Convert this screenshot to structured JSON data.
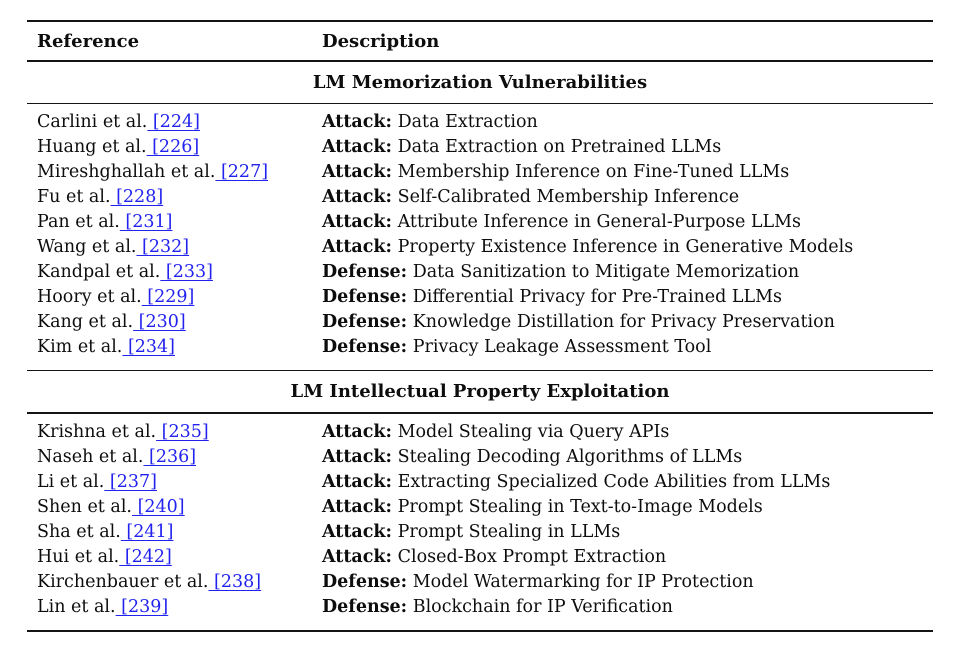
{
  "table": {
    "columns": {
      "reference": "Reference",
      "description": "Description"
    },
    "link_color": "#2222ee",
    "sections": [
      {
        "title": "LM Memorization Vulnerabilities",
        "rows": [
          {
            "author": "Carlini et al.",
            "cite": "[224]",
            "kind": "Attack:",
            "desc": "Data Extraction"
          },
          {
            "author": "Huang et al.",
            "cite": "[226]",
            "kind": "Attack:",
            "desc": "Data Extraction on Pretrained LLMs"
          },
          {
            "author": "Mireshghallah et al.",
            "cite": "[227]",
            "kind": "Attack:",
            "desc": "Membership Inference on Fine-Tuned LLMs"
          },
          {
            "author": "Fu et al.",
            "cite": "[228]",
            "kind": "Attack:",
            "desc": "Self-Calibrated Membership Inference"
          },
          {
            "author": "Pan et al.",
            "cite": "[231]",
            "kind": "Attack:",
            "desc": "Attribute Inference in General-Purpose LLMs"
          },
          {
            "author": "Wang et al.",
            "cite": "[232]",
            "kind": "Attack:",
            "desc": "Property Existence Inference in Generative Models"
          },
          {
            "author": "Kandpal et al.",
            "cite": "[233]",
            "kind": "Defense:",
            "desc": "Data Sanitization to Mitigate Memorization"
          },
          {
            "author": "Hoory et al.",
            "cite": "[229]",
            "kind": "Defense:",
            "desc": "Differential Privacy for Pre-Trained LLMs"
          },
          {
            "author": "Kang et al.",
            "cite": "[230]",
            "kind": "Defense:",
            "desc": "Knowledge Distillation for Privacy Preservation"
          },
          {
            "author": "Kim et al.",
            "cite": "[234]",
            "kind": "Defense:",
            "desc": "Privacy Leakage Assessment Tool"
          }
        ]
      },
      {
        "title": "LM Intellectual Property Exploitation",
        "rows": [
          {
            "author": "Krishna et al.",
            "cite": "[235]",
            "kind": "Attack:",
            "desc": "Model Stealing via Query APIs"
          },
          {
            "author": "Naseh et al.",
            "cite": "[236]",
            "kind": "Attack:",
            "desc": "Stealing Decoding Algorithms of LLMs"
          },
          {
            "author": "Li et al.",
            "cite": "[237]",
            "kind": "Attack:",
            "desc": "Extracting Specialized Code Abilities from LLMs"
          },
          {
            "author": "Shen et al.",
            "cite": "[240]",
            "kind": "Attack:",
            "desc": "Prompt Stealing in Text-to-Image Models"
          },
          {
            "author": "Sha et al.",
            "cite": "[241]",
            "kind": "Attack:",
            "desc": "Prompt Stealing in LLMs"
          },
          {
            "author": "Hui et al.",
            "cite": "[242]",
            "kind": "Attack:",
            "desc": "Closed-Box Prompt Extraction"
          },
          {
            "author": "Kirchenbauer et al.",
            "cite": "[238]",
            "kind": "Defense:",
            "desc": "Model Watermarking for IP Protection"
          },
          {
            "author": "Lin et al.",
            "cite": "[239]",
            "kind": "Defense:",
            "desc": "Blockchain for IP Verification"
          }
        ]
      }
    ]
  }
}
